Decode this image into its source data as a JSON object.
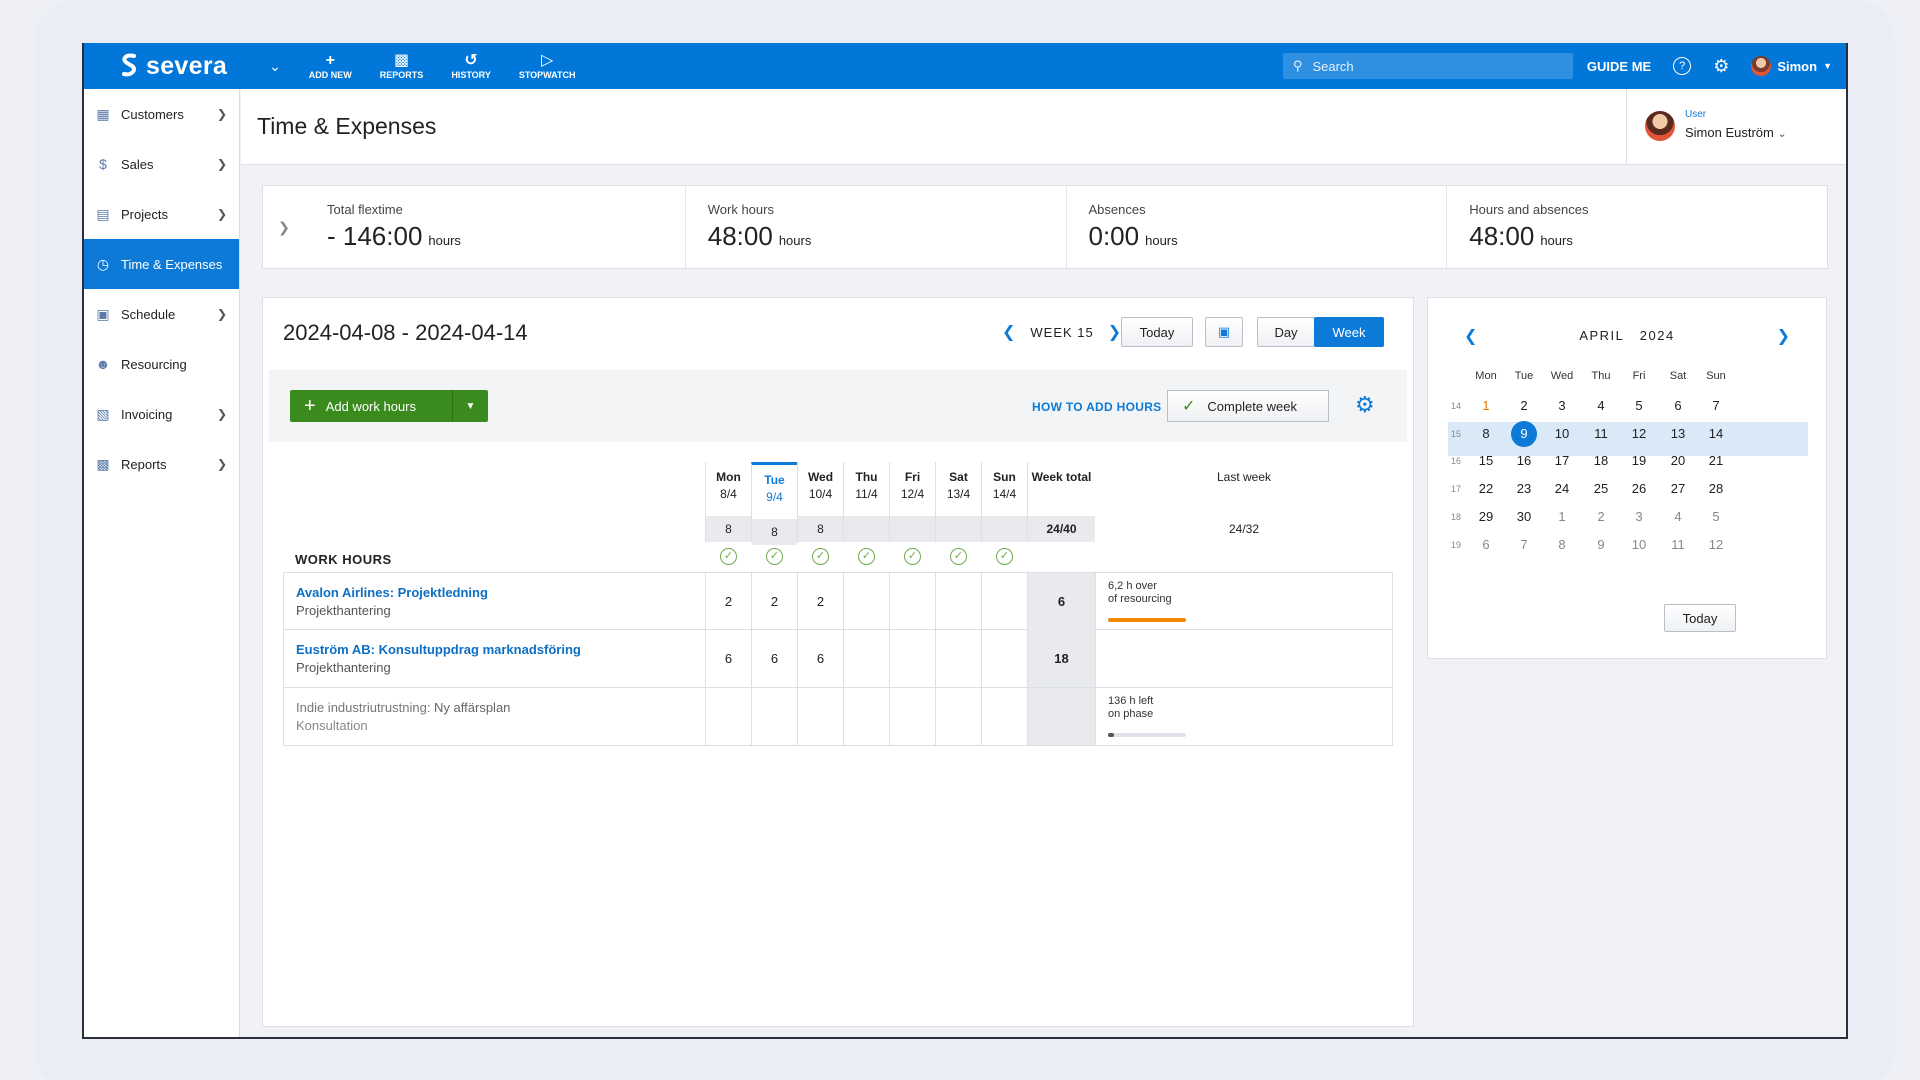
{
  "topbar": {
    "brand": "severa",
    "buttons": [
      {
        "label": "ADD NEW",
        "icon": "plus-icon"
      },
      {
        "label": "REPORTS",
        "icon": "bar-chart-icon"
      },
      {
        "label": "HISTORY",
        "icon": "history-icon"
      },
      {
        "label": "STOPWATCH",
        "icon": "stopwatch-icon"
      }
    ],
    "search_placeholder": "Search",
    "guide_label": "GUIDE ME",
    "user_label": "Simon"
  },
  "sidebar": {
    "items": [
      {
        "label": "Customers",
        "icon": "building-icon",
        "chevron": true
      },
      {
        "label": "Sales",
        "icon": "dollar-icon",
        "chevron": true
      },
      {
        "label": "Projects",
        "icon": "folder-icon",
        "chevron": true
      },
      {
        "label": "Time & Expenses",
        "icon": "clock-icon",
        "chevron": false,
        "active": true
      },
      {
        "label": "Schedule",
        "icon": "calendar-icon",
        "chevron": true
      },
      {
        "label": "Resourcing",
        "icon": "people-icon",
        "chevron": false
      },
      {
        "label": "Invoicing",
        "icon": "invoice-icon",
        "chevron": true
      },
      {
        "label": "Reports",
        "icon": "bar-chart-icon",
        "chevron": true
      }
    ]
  },
  "header": {
    "title": "Time & Expenses",
    "user_caption": "User",
    "user_name": "Simon Euström"
  },
  "summary": [
    {
      "label": "Total flextime",
      "value": "- 146:00",
      "unit": "hours"
    },
    {
      "label": "Work hours",
      "value": "48:00",
      "unit": "hours"
    },
    {
      "label": "Absences",
      "value": "0:00",
      "unit": "hours"
    },
    {
      "label": "Hours and absences",
      "value": "48:00",
      "unit": "hours"
    }
  ],
  "timesheet": {
    "date_range": "2024-04-08 - 2024-04-14",
    "week_label": "WEEK 15",
    "today_label": "Today",
    "day_label": "Day",
    "week_btn_label": "Week",
    "add_label": "Add work hours",
    "howto_label": "HOW TO ADD HOURS",
    "complete_label": "Complete week",
    "section_label": "WORK HOURS",
    "days": [
      {
        "name": "Mon",
        "date": "8/4",
        "value": "8"
      },
      {
        "name": "Tue",
        "date": "9/4",
        "value": "8",
        "today": true
      },
      {
        "name": "Wed",
        "date": "10/4",
        "value": "8"
      },
      {
        "name": "Thu",
        "date": "11/4",
        "value": ""
      },
      {
        "name": "Fri",
        "date": "12/4",
        "value": ""
      },
      {
        "name": "Sat",
        "date": "13/4",
        "value": ""
      },
      {
        "name": "Sun",
        "date": "14/4",
        "value": ""
      }
    ],
    "week_total_label": "Week total",
    "week_total_value": "24/40",
    "last_week_label": "Last week",
    "last_week_value": "24/32",
    "rows": [
      {
        "customer": "Avalon Airlines",
        "project": "Projektledning",
        "phase": "Projekthantering",
        "hours": [
          "2",
          "2",
          "2",
          "",
          "",
          "",
          ""
        ],
        "total": "6",
        "note1": "6,2 h over",
        "note2": "of resourcing",
        "bar_fraction": 1.0,
        "bar_color": "#f08a00",
        "muted": false
      },
      {
        "customer": "Euström AB",
        "project": "Konsultuppdrag marknadsföring",
        "phase": "Projekthantering",
        "hours": [
          "6",
          "6",
          "6",
          "",
          "",
          "",
          ""
        ],
        "total": "18",
        "note1": "",
        "note2": "",
        "bar_fraction": null,
        "muted": false
      },
      {
        "customer": "Indie industriutrustning",
        "project": "Ny affärsplan",
        "phase": "Konsultation",
        "hours": [
          "",
          "",
          "",
          "",
          "",
          "",
          ""
        ],
        "total": "",
        "note1": "136 h left",
        "note2": "on phase",
        "bar_fraction": 0.08,
        "bar_color": "#555555",
        "muted": true
      }
    ]
  },
  "calendar": {
    "month": "APRIL",
    "year": "2024",
    "weekdays": [
      "Mon",
      "Tue",
      "Wed",
      "Thu",
      "Fri",
      "Sat",
      "Sun"
    ],
    "today_label": "Today",
    "weeks": [
      {
        "num": "14",
        "days": [
          {
            "d": "1",
            "holiday": true
          },
          {
            "d": "2"
          },
          {
            "d": "3"
          },
          {
            "d": "4"
          },
          {
            "d": "5"
          },
          {
            "d": "6"
          },
          {
            "d": "7"
          }
        ]
      },
      {
        "num": "15",
        "selected": true,
        "days": [
          {
            "d": "8"
          },
          {
            "d": "9",
            "sel": true
          },
          {
            "d": "10"
          },
          {
            "d": "11"
          },
          {
            "d": "12"
          },
          {
            "d": "13"
          },
          {
            "d": "14"
          }
        ]
      },
      {
        "num": "16",
        "days": [
          {
            "d": "15"
          },
          {
            "d": "16"
          },
          {
            "d": "17"
          },
          {
            "d": "18"
          },
          {
            "d": "19"
          },
          {
            "d": "20"
          },
          {
            "d": "21"
          }
        ]
      },
      {
        "num": "17",
        "days": [
          {
            "d": "22"
          },
          {
            "d": "23"
          },
          {
            "d": "24"
          },
          {
            "d": "25"
          },
          {
            "d": "26"
          },
          {
            "d": "27"
          },
          {
            "d": "28"
          }
        ]
      },
      {
        "num": "18",
        "days": [
          {
            "d": "29"
          },
          {
            "d": "30"
          },
          {
            "d": "1",
            "other": true
          },
          {
            "d": "2",
            "other": true
          },
          {
            "d": "3",
            "other": true
          },
          {
            "d": "4",
            "other": true
          },
          {
            "d": "5",
            "other": true
          }
        ]
      },
      {
        "num": "19",
        "days": [
          {
            "d": "6",
            "other": true
          },
          {
            "d": "7",
            "other": true
          },
          {
            "d": "8",
            "other": true
          },
          {
            "d": "9",
            "other": true
          },
          {
            "d": "10",
            "other": true
          },
          {
            "d": "11",
            "other": true
          },
          {
            "d": "12",
            "other": true
          }
        ]
      }
    ]
  },
  "colors": {
    "brand": "#0077d9",
    "accent": "#0d7ad8",
    "add_green": "#3a8a1e",
    "warning": "#f08a00"
  }
}
